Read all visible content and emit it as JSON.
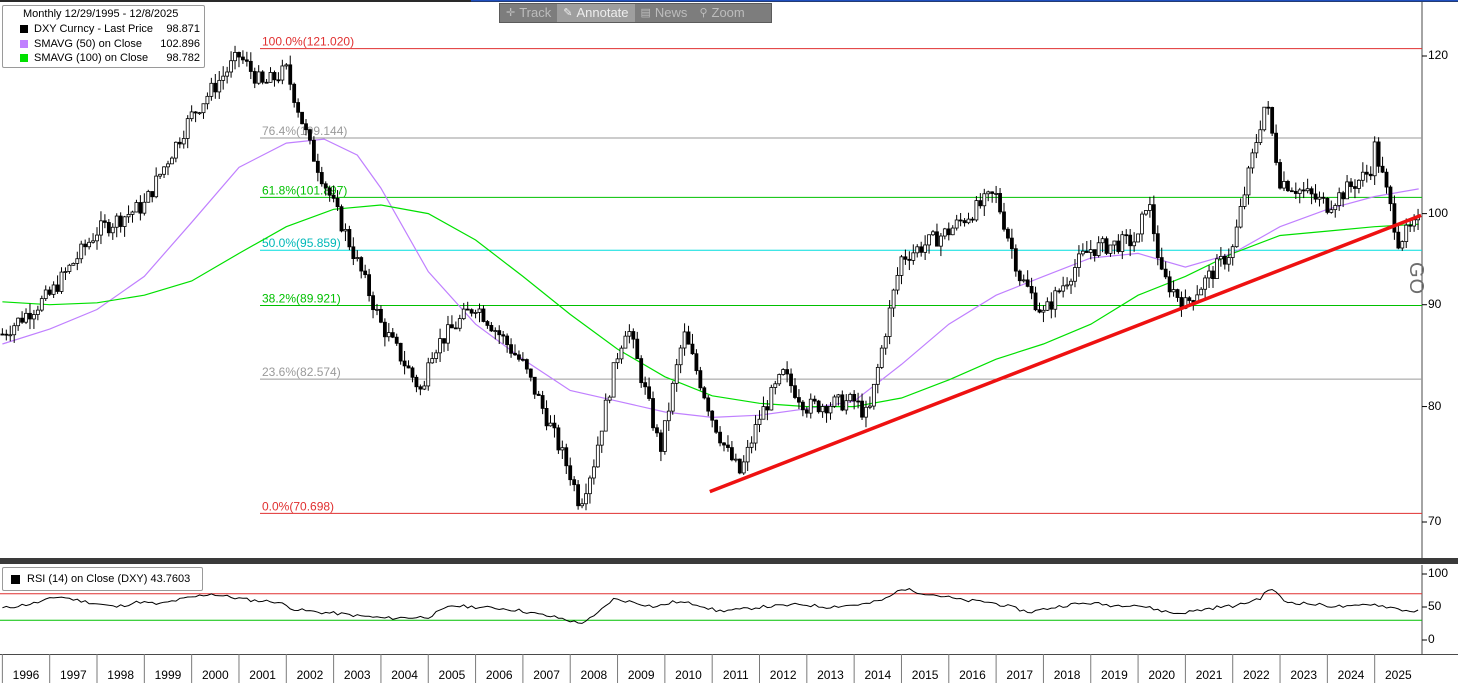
{
  "header": {
    "title": "Monthly 12/29/1995 - 12/8/2025"
  },
  "legend": [
    {
      "label": "DXY Curncy - Last Price",
      "value": "98.871",
      "color": "#000000"
    },
    {
      "label": "SMAVG (50)  on Close",
      "value": "102.896",
      "color": "#c080ff"
    },
    {
      "label": "SMAVG (100)  on Close",
      "value": "98.782",
      "color": "#00e000"
    }
  ],
  "toolbar": {
    "track_label": "Track",
    "annotate_label": "Annotate",
    "news_label": "News",
    "zoom_label": "Zoom"
  },
  "rsi": {
    "label": "RSI (14)  on Close (DXY)",
    "value": "43.7603",
    "color": "#000000",
    "ticks": [
      "100",
      "50",
      "0"
    ]
  },
  "side_label": "GO",
  "chart_data": [
    {
      "type": "candlestick",
      "title": "Monthly 12/29/1995 - 12/8/2025",
      "x_ticks": [
        "1996",
        "1997",
        "1998",
        "1999",
        "2000",
        "2001",
        "2002",
        "2003",
        "2004",
        "2005",
        "2006",
        "2007",
        "2008",
        "2009",
        "2010",
        "2011",
        "2012",
        "2013",
        "2014",
        "2015",
        "2016",
        "2017",
        "2018",
        "2019",
        "2020",
        "2021",
        "2022",
        "2023",
        "2024",
        "2025"
      ],
      "x_range": [
        1995.95,
        2026.0
      ],
      "y_ticks": [
        "120",
        "100",
        "90",
        "80",
        "70"
      ],
      "y_range": [
        62,
        125
      ],
      "y_scale": "log",
      "series": [
        {
          "name": "DXY Curncy - Last Price",
          "last": 98.871,
          "x": [
            1996.0,
            1997.0,
            1998.0,
            1999.0,
            2000.0,
            2001.0,
            2001.5,
            2002.0,
            2002.5,
            2003.0,
            2004.0,
            2004.9,
            2005.0,
            2006.0,
            2007.0,
            2008.0,
            2008.2,
            2008.5,
            2009.0,
            2009.2,
            2009.9,
            2010.0,
            2010.4,
            2011.0,
            2011.3,
            2011.6,
            2012.0,
            2012.5,
            2013.0,
            2014.0,
            2014.3,
            2015.0,
            2016.0,
            2016.9,
            2017.0,
            2017.5,
            2018.0,
            2018.8,
            2019.0,
            2020.0,
            2020.2,
            2020.5,
            2021.0,
            2021.5,
            2022.0,
            2022.7,
            2023.0,
            2024.0,
            2024.9,
            2025.0,
            2025.5,
            2025.93
          ],
          "values": [
            87.0,
            91.0,
            98.0,
            101.0,
            112.0,
            120.0,
            116.0,
            118.0,
            108.0,
            101.0,
            88.0,
            81.0,
            85.0,
            90.0,
            84.0,
            74.0,
            71.5,
            75.0,
            85.0,
            88.0,
            76.0,
            78.0,
            87.0,
            79.0,
            76.0,
            74.0,
            79.0,
            83.0,
            80.0,
            80.5,
            79.0,
            95.0,
            98.0,
            102.0,
            102.0,
            93.0,
            89.0,
            95.0,
            96.0,
            97.0,
            102.0,
            93.0,
            90.0,
            93.0,
            96.0,
            114.0,
            104.0,
            101.0,
            105.0,
            108.0,
            97.0,
            98.871
          ]
        },
        {
          "name": "SMAVG (50)  on Close",
          "last": 102.896,
          "x": [
            1996.0,
            1997.0,
            1998.0,
            1999.0,
            2000.0,
            2001.0,
            2002.0,
            2002.8,
            2003.5,
            2004.0,
            2005.0,
            2006.0,
            2007.0,
            2008.0,
            2009.0,
            2010.0,
            2011.0,
            2012.0,
            2013.0,
            2014.0,
            2015.0,
            2016.0,
            2017.0,
            2018.0,
            2019.0,
            2020.0,
            2021.0,
            2022.0,
            2023.0,
            2024.0,
            2025.0,
            2025.93
          ],
          "values": [
            86.0,
            87.5,
            89.5,
            93.0,
            99.0,
            105.5,
            108.5,
            109.0,
            107.0,
            103.0,
            93.5,
            88.0,
            84.5,
            81.5,
            80.5,
            79.5,
            79.0,
            79.2,
            79.8,
            80.5,
            84.0,
            88.0,
            91.0,
            93.0,
            95.0,
            95.5,
            94.0,
            95.5,
            98.5,
            100.5,
            102.0,
            102.896
          ]
        },
        {
          "name": "SMAVG (100)  on Close",
          "last": 98.782,
          "x": [
            1996.0,
            1997.0,
            1998.0,
            1999.0,
            2000.0,
            2001.0,
            2002.0,
            2003.0,
            2004.0,
            2005.0,
            2006.0,
            2007.0,
            2008.0,
            2009.0,
            2010.0,
            2011.0,
            2012.0,
            2013.0,
            2014.0,
            2015.0,
            2016.0,
            2017.0,
            2018.0,
            2019.0,
            2020.0,
            2021.0,
            2022.0,
            2023.0,
            2024.0,
            2025.0,
            2025.93
          ],
          "values": [
            90.3,
            90.0,
            90.2,
            91.0,
            92.5,
            95.5,
            98.5,
            100.5,
            101.0,
            100.0,
            97.0,
            93.0,
            89.0,
            85.5,
            82.8,
            81.0,
            80.3,
            80.0,
            80.0,
            80.8,
            82.5,
            84.5,
            86.0,
            88.0,
            91.0,
            93.0,
            95.5,
            97.5,
            98.0,
            98.5,
            98.782
          ]
        }
      ],
      "fibonacci_levels": [
        {
          "label": "100.0%(121.020)",
          "value": 121.02,
          "color": "#e03030"
        },
        {
          "label": "76.4%(109.144)",
          "value": 109.144,
          "color": "#9a9a9a"
        },
        {
          "label": "61.8%(101.897)",
          "value": 101.897,
          "color": "#00c000"
        },
        {
          "label": "50.0%(95.859)",
          "value": 95.859,
          "color": "#00dddd"
        },
        {
          "label": "38.2%(89.921)",
          "value": 89.921,
          "color": "#00c000"
        },
        {
          "label": "23.6%(82.574)",
          "value": 82.574,
          "color": "#9a9a9a"
        },
        {
          "label": "0.0%(70.698)",
          "value": 70.698,
          "color": "#e03030"
        }
      ],
      "trendline": {
        "x": [
          2010.95,
          2025.98
        ],
        "values": [
          72.5,
          99.8
        ],
        "color": "#ee1111"
      }
    },
    {
      "type": "line",
      "title": "RSI (14)  on Close (DXY)",
      "y_range": [
        0,
        100
      ],
      "y_ticks": [
        "100",
        "50",
        "0"
      ],
      "reference_lines": [
        {
          "value": 70,
          "color": "#e03030"
        },
        {
          "value": 30,
          "color": "#00c000"
        }
      ],
      "series": [
        {
          "name": "RSI (14)  on Close (DXY)",
          "last": 43.7603,
          "x": [
            1996.0,
            1996.7,
            1997.2,
            1997.6,
            1998.0,
            1998.4,
            1998.9,
            1999.3,
            1999.8,
            2000.4,
            2000.9,
            2001.3,
            2001.8,
            2002.2,
            2002.7,
            2003.1,
            2003.6,
            2004.1,
            2004.6,
            2005.0,
            2005.5,
            2006.0,
            2006.5,
            2006.9,
            2007.4,
            2007.8,
            2008.2,
            2008.5,
            2008.9,
            2009.3,
            2009.8,
            2010.2,
            2010.7,
            2011.1,
            2011.6,
            2012.0,
            2012.5,
            2012.9,
            2013.4,
            2013.8,
            2014.3,
            2014.7,
            2015.0,
            2015.4,
            2015.9,
            2016.3,
            2016.8,
            2017.2,
            2017.7,
            2018.1,
            2018.6,
            2019.0,
            2019.5,
            2019.9,
            2020.4,
            2020.8,
            2021.2,
            2021.7,
            2022.1,
            2022.6,
            2022.8,
            2023.1,
            2023.6,
            2024.0,
            2024.5,
            2024.9,
            2025.3,
            2025.7,
            2025.93
          ],
          "values": [
            48,
            56,
            66,
            60,
            55,
            50,
            58,
            54,
            62,
            70,
            64,
            60,
            58,
            46,
            42,
            40,
            36,
            33,
            34,
            35,
            52,
            50,
            48,
            45,
            38,
            33,
            25,
            35,
            62,
            58,
            50,
            58,
            54,
            44,
            46,
            50,
            52,
            54,
            50,
            52,
            55,
            63,
            78,
            72,
            66,
            60,
            58,
            52,
            42,
            48,
            54,
            56,
            52,
            54,
            46,
            40,
            44,
            50,
            52,
            64,
            80,
            58,
            55,
            52,
            50,
            55,
            50,
            44,
            43.76
          ]
        }
      ]
    }
  ]
}
